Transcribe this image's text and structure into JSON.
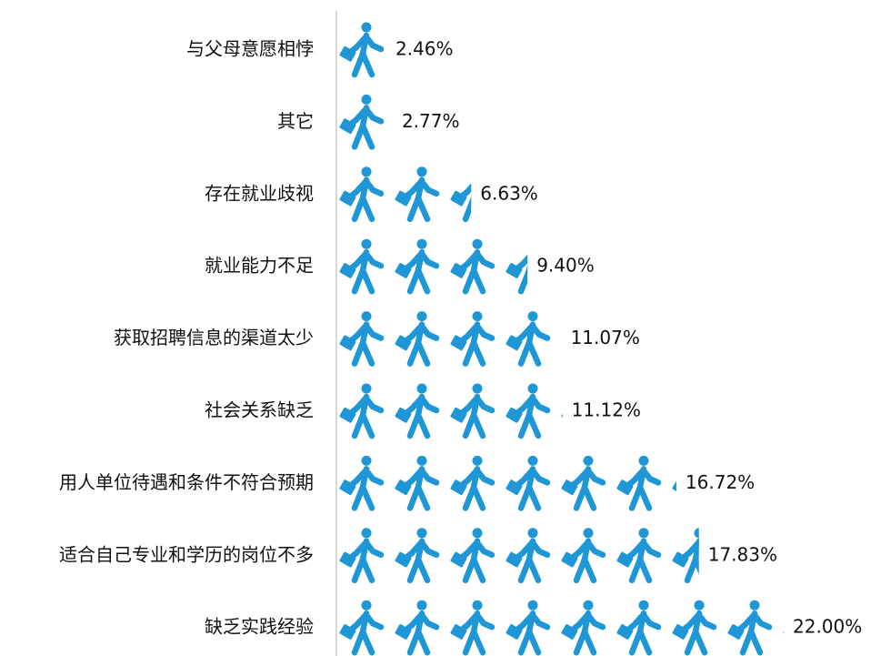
{
  "chart_data": {
    "type": "bar",
    "orientation": "horizontal",
    "color": "#1f96d6",
    "categories": [
      "与父母意愿相悖",
      "其它",
      "存在就业歧视",
      "就业能力不足",
      "获取招聘信息的渠道太少",
      "社会关系缺乏",
      "用人单位待遇和条件不符合预期",
      "适合自己专业和学历的岗位不多",
      "缺乏实践经验"
    ],
    "values": [
      2.46,
      2.77,
      6.63,
      9.4,
      11.07,
      11.12,
      16.72,
      17.83,
      22.0
    ],
    "value_labels": [
      "2.46%",
      "2.77%",
      "6.63%",
      "9.40%",
      "11.07%",
      "11.12%",
      "16.72%",
      "17.83%",
      "22.00%"
    ]
  }
}
